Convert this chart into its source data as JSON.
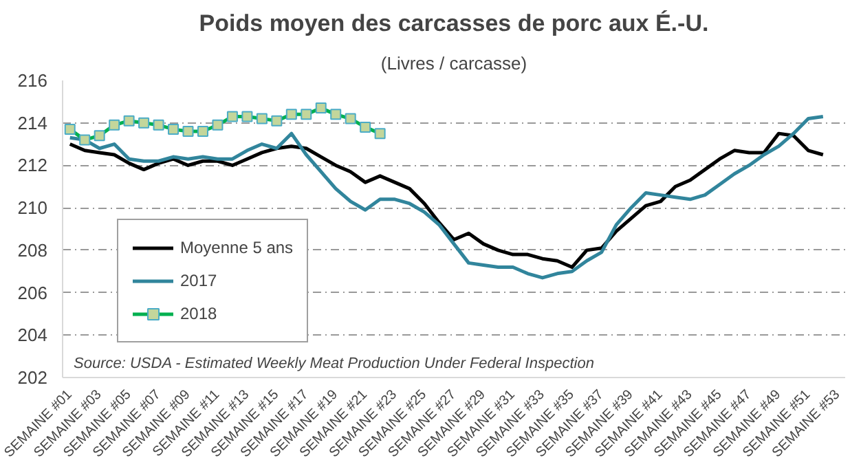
{
  "chart_data": {
    "type": "line",
    "title": "Poids moyen des carcasses de porc aux É.-U.",
    "subtitle": "(Livres / carcasse)",
    "categories": [
      "SEMAINE #01",
      null,
      "SEMAINE #03",
      null,
      "SEMAINE #05",
      null,
      "SEMAINE #07",
      null,
      "SEMAINE #09",
      null,
      "SEMAINE #11",
      null,
      "SEMAINE #13",
      null,
      "SEMAINE #15",
      null,
      "SEMAINE #17",
      null,
      "SEMAINE #19",
      null,
      "SEMAINE #21",
      null,
      "SEMAINE #23",
      null,
      "SEMAINE #25",
      null,
      "SEMAINE #27",
      null,
      "SEMAINE #29",
      null,
      "SEMAINE #31",
      null,
      "SEMAINE #33",
      null,
      "SEMAINE #35",
      null,
      "SEMAINE #37",
      null,
      "SEMAINE #39",
      null,
      "SEMAINE #41",
      null,
      "SEMAINE #43",
      null,
      "SEMAINE #45",
      null,
      "SEMAINE #47",
      null,
      "SEMAINE #49",
      null,
      "SEMAINE #51",
      null,
      "SEMAINE #53"
    ],
    "series": [
      {
        "name": "Moyenne 5 ans",
        "color": "#000000",
        "marker": "none",
        "values": [
          213.0,
          212.7,
          212.6,
          212.5,
          212.1,
          211.8,
          212.1,
          212.3,
          212.0,
          212.2,
          212.2,
          212.0,
          212.3,
          212.6,
          212.8,
          212.9,
          212.8,
          212.4,
          212.0,
          211.7,
          211.2,
          211.5,
          211.2,
          210.9,
          210.2,
          209.3,
          208.5,
          208.8,
          208.3,
          208.0,
          207.8,
          207.8,
          207.6,
          207.5,
          207.2,
          208.0,
          208.1,
          208.9,
          209.5,
          210.1,
          210.3,
          211.0,
          211.3,
          211.8,
          212.3,
          212.7,
          212.6,
          212.6,
          213.5,
          213.4,
          212.7,
          212.5,
          null
        ]
      },
      {
        "name": "2017",
        "color": "#31859c",
        "marker": "none",
        "values": [
          213.3,
          213.2,
          212.8,
          213.0,
          212.3,
          212.2,
          212.2,
          212.4,
          212.3,
          212.4,
          212.3,
          212.3,
          212.7,
          213.0,
          212.8,
          213.5,
          212.5,
          211.7,
          210.9,
          210.3,
          209.9,
          210.4,
          210.4,
          210.2,
          209.8,
          209.2,
          208.3,
          207.4,
          207.3,
          207.2,
          207.2,
          206.9,
          206.7,
          206.9,
          207.0,
          207.5,
          207.9,
          209.2,
          210.0,
          210.7,
          210.6,
          210.5,
          210.4,
          210.6,
          211.1,
          211.6,
          212.0,
          212.5,
          212.9,
          213.5,
          214.2,
          214.3,
          null
        ]
      },
      {
        "name": "2018",
        "color": "#00b050",
        "marker": "square",
        "values": [
          213.7,
          213.2,
          213.4,
          213.9,
          214.1,
          214.0,
          213.9,
          213.7,
          213.6,
          213.6,
          213.9,
          214.3,
          214.3,
          214.2,
          214.1,
          214.4,
          214.4,
          214.7,
          214.4,
          214.2,
          213.8,
          213.5,
          null,
          null,
          null,
          null,
          null,
          null,
          null,
          null,
          null,
          null,
          null,
          null,
          null,
          null,
          null,
          null,
          null,
          null,
          null,
          null,
          null,
          null,
          null,
          null,
          null,
          null,
          null,
          null,
          null,
          null,
          null
        ]
      }
    ],
    "ylim": [
      202,
      216
    ],
    "yticks": [
      202,
      204,
      206,
      208,
      210,
      212,
      214,
      216
    ],
    "grid": "y",
    "legend": "bottom left",
    "line_style": "solid",
    "annotations": [
      "Source: USDA - Estimated Weekly Meat Production Under Federal Inspection"
    ]
  }
}
